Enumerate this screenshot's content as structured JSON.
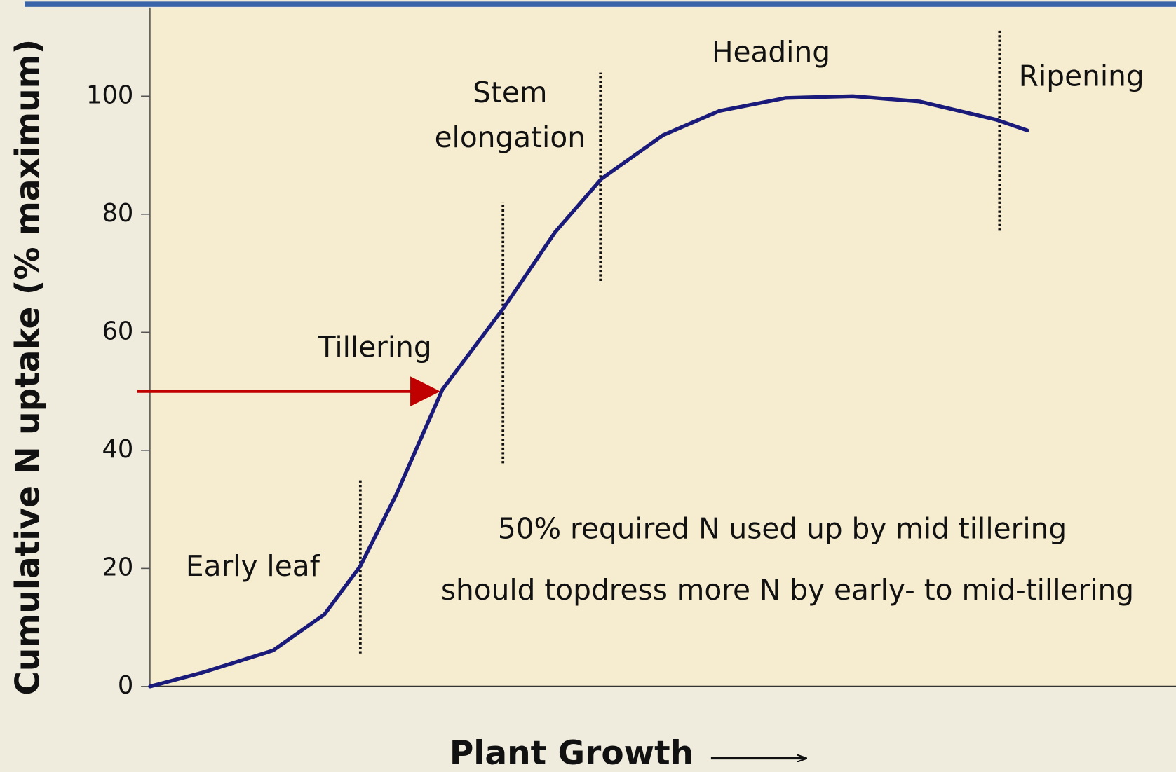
{
  "chart_data": {
    "type": "line",
    "ylabel": "Cumulative N uptake (% maximum)",
    "xlabel": "Plant Growth",
    "x": [
      0,
      5,
      12,
      17,
      20.5,
      24,
      28.5,
      34.5,
      39.5,
      44,
      50,
      55.5,
      62,
      68.5,
      75,
      82.5,
      85.5
    ],
    "series": [
      {
        "color": "#1a1a7a",
        "values": [
          0,
          2.3,
          6.1,
          12.2,
          20.4,
          32.5,
          50.3,
          64.2,
          77,
          86,
          93.4,
          97.5,
          99.7,
          100,
          99.1,
          96,
          94.2
        ]
      }
    ],
    "xlim": [
      0,
      100
    ],
    "ylim": [
      0,
      115
    ],
    "yticks": [
      0,
      20,
      40,
      60,
      80,
      100
    ],
    "stages": [
      "Early leaf",
      "Tillering",
      "Stem",
      "elongation",
      "Heading",
      "Ripening"
    ],
    "boundaries": [
      {
        "x": 20.5,
        "y": [
          5.6,
          35.3
        ]
      },
      {
        "x": 34.4,
        "y": [
          37.8,
          82
        ]
      },
      {
        "x": 43.9,
        "y": [
          68.7,
          104
        ]
      },
      {
        "x": 82.8,
        "y": [
          77.2,
          111.4
        ]
      }
    ],
    "arrow": {
      "y": 50,
      "x_end": 28,
      "color": "#c00000"
    },
    "annotations": [
      "50% required N used up by mid tillering",
      "should topdress more N by early- to mid-tillering"
    ]
  }
}
